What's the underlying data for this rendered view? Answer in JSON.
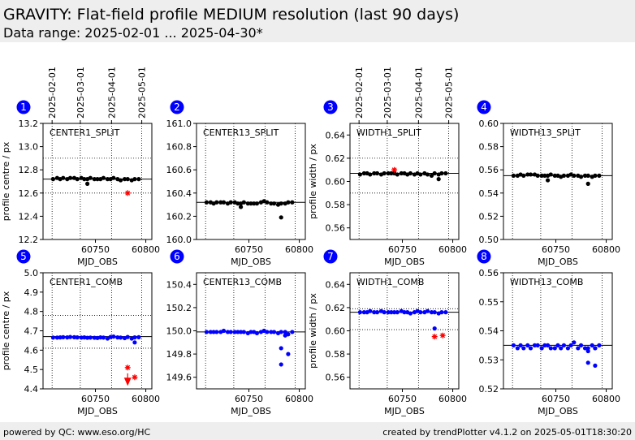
{
  "header": {
    "title": "GRAVITY: Flat-field profile MEDIUM resolution (last 90 days)",
    "subtitle": "Data range: 2025-02-01 ... 2025-04-30*"
  },
  "footer": {
    "left": "powered by QC: www.eso.org/HC",
    "right": "created by trendPlotter v4.1.2 on 2025-05-01T18:30:20"
  },
  "chart_data": [
    {
      "type": "scatter",
      "badge": "1",
      "label": "CENTER1_SPLIT",
      "ylabel": "profile centre / px",
      "xlabel": "MJD_OBS",
      "xlim": [
        60698,
        60806
      ],
      "xticks": [
        60750,
        60800
      ],
      "x2ticks": [
        {
          "value": 60707,
          "label": "2025-02-01"
        },
        {
          "value": 60735,
          "label": "2025-03-01"
        },
        {
          "value": 60766,
          "label": "2025-04-01"
        },
        {
          "value": 60796,
          "label": "2025-05-01"
        }
      ],
      "vlines": [
        60707,
        60735,
        60766,
        60796
      ],
      "ylim": [
        12.2,
        13.2
      ],
      "yticks": [
        12.2,
        12.4,
        12.6,
        12.8,
        {
          "value": 13,
          "label": "13.0"
        },
        13.2
      ],
      "ref_line": 12.72,
      "limits": [
        12.9,
        12.6
      ],
      "series": [
        {
          "color": "#000000",
          "marker": "dot",
          "x": [
            60708,
            60712,
            60715,
            60718,
            60722,
            60725,
            60729,
            60732,
            60736,
            60739,
            60742,
            60745,
            60749,
            60752,
            60755,
            60758,
            60762,
            60765,
            60768,
            60772,
            60775,
            60779,
            60782,
            60786,
            60789,
            60793
          ],
          "values": [
            12.72,
            12.73,
            12.72,
            12.73,
            12.72,
            12.73,
            12.73,
            12.72,
            12.73,
            12.72,
            12.72,
            12.73,
            12.72,
            12.72,
            12.72,
            12.73,
            12.72,
            12.72,
            12.73,
            12.72,
            12.71,
            12.72,
            12.72,
            12.71,
            12.72,
            12.72
          ]
        },
        {
          "color": "#000000",
          "marker": "dot",
          "x": [
            60742
          ],
          "values": [
            12.68
          ]
        },
        {
          "color": "#ff0000",
          "marker": "star",
          "x": [
            60782
          ],
          "values": [
            12.6
          ]
        }
      ]
    },
    {
      "type": "scatter",
      "badge": "2",
      "label": "CENTER13_SPLIT",
      "xlabel": "MJD_OBS",
      "xlim": [
        60698,
        60806
      ],
      "xticks": [
        60750,
        60800
      ],
      "vlines": [
        60707,
        60735,
        60766,
        60796
      ],
      "ylim": [
        160,
        161
      ],
      "yticks": [
        {
          "value": 160,
          "label": "160.0"
        },
        160.2,
        160.4,
        160.6,
        160.8,
        {
          "value": 161,
          "label": "161.0"
        }
      ],
      "ref_line": 160.32,
      "limits": [],
      "series": [
        {
          "color": "#000000",
          "marker": "dot",
          "x": [
            60708,
            60712,
            60715,
            60718,
            60722,
            60725,
            60729,
            60732,
            60736,
            60739,
            60742,
            60745,
            60749,
            60752,
            60755,
            60758,
            60762,
            60765,
            60768,
            60772,
            60775,
            60779,
            60782,
            60786,
            60789,
            60793
          ],
          "values": [
            160.32,
            160.32,
            160.31,
            160.32,
            160.32,
            160.32,
            160.31,
            160.32,
            160.32,
            160.31,
            160.31,
            160.32,
            160.31,
            160.31,
            160.31,
            160.31,
            160.32,
            160.33,
            160.32,
            160.31,
            160.31,
            160.3,
            160.31,
            160.31,
            160.32,
            160.32
          ]
        },
        {
          "color": "#000000",
          "marker": "dot",
          "x": [
            60742,
            60782
          ],
          "values": [
            160.28,
            160.19
          ]
        }
      ]
    },
    {
      "type": "scatter",
      "badge": "3",
      "label": "WIDTH1_SPLIT",
      "ylabel": "profile width / px",
      "xlabel": "MJD_OBS",
      "xlim": [
        60698,
        60806
      ],
      "xticks": [
        60750,
        60800
      ],
      "x2ticks": [
        {
          "value": 60707,
          "label": "2025-02-01"
        },
        {
          "value": 60735,
          "label": "2025-03-01"
        },
        {
          "value": 60766,
          "label": "2025-04-01"
        },
        {
          "value": 60796,
          "label": "2025-05-01"
        }
      ],
      "vlines": [
        60707,
        60735,
        60766,
        60796
      ],
      "ylim": [
        0.55,
        0.65
      ],
      "yticks": [
        0.56,
        0.58,
        {
          "value": 0.6,
          "label": "0.60"
        },
        0.62,
        0.64
      ],
      "ref_line": 0.607,
      "limits": [
        0.62,
        0.59
      ],
      "series": [
        {
          "color": "#000000",
          "marker": "dot",
          "x": [
            60708,
            60712,
            60715,
            60718,
            60722,
            60725,
            60729,
            60732,
            60736,
            60739,
            60742,
            60745,
            60749,
            60752,
            60755,
            60758,
            60762,
            60765,
            60768,
            60772,
            60775,
            60779,
            60782,
            60786,
            60789,
            60793
          ],
          "values": [
            0.606,
            0.607,
            0.607,
            0.606,
            0.607,
            0.607,
            0.606,
            0.607,
            0.607,
            0.607,
            0.607,
            0.606,
            0.607,
            0.607,
            0.606,
            0.607,
            0.606,
            0.607,
            0.606,
            0.607,
            0.606,
            0.605,
            0.607,
            0.606,
            0.607,
            0.607
          ]
        },
        {
          "color": "#000000",
          "marker": "dot",
          "x": [
            60786
          ],
          "values": [
            0.602
          ]
        },
        {
          "color": "#ff0000",
          "marker": "star",
          "x": [
            60742
          ],
          "values": [
            0.61
          ]
        }
      ]
    },
    {
      "type": "scatter",
      "badge": "4",
      "label": "WIDTH13_SPLIT",
      "xlabel": "MJD_OBS",
      "xlim": [
        60698,
        60806
      ],
      "xticks": [
        60750,
        60800
      ],
      "vlines": [
        60707,
        60735,
        60766,
        60796
      ],
      "ylim": [
        0.5,
        0.6
      ],
      "yticks": [
        {
          "value": 0.5,
          "label": "0.50"
        },
        0.52,
        0.54,
        0.56,
        0.58,
        {
          "value": 0.6,
          "label": "0.60"
        }
      ],
      "ref_line": 0.555,
      "limits": [],
      "series": [
        {
          "color": "#000000",
          "marker": "dot",
          "x": [
            60708,
            60712,
            60715,
            60718,
            60722,
            60725,
            60729,
            60732,
            60736,
            60739,
            60742,
            60745,
            60749,
            60752,
            60755,
            60758,
            60762,
            60765,
            60768,
            60772,
            60775,
            60779,
            60782,
            60786,
            60789,
            60793
          ],
          "values": [
            0.555,
            0.555,
            0.556,
            0.555,
            0.556,
            0.556,
            0.556,
            0.555,
            0.555,
            0.555,
            0.555,
            0.556,
            0.555,
            0.555,
            0.554,
            0.555,
            0.555,
            0.556,
            0.555,
            0.555,
            0.554,
            0.555,
            0.555,
            0.554,
            0.555,
            0.555
          ]
        },
        {
          "color": "#000000",
          "marker": "dot",
          "x": [
            60742,
            60782
          ],
          "values": [
            0.551,
            0.548
          ]
        }
      ]
    },
    {
      "type": "scatter",
      "badge": "5",
      "label": "CENTER1_COMB",
      "ylabel": "profile centre / px",
      "xlabel": "MJD_OBS",
      "xlim": [
        60698,
        60806
      ],
      "xticks": [
        60750,
        60800
      ],
      "vlines": [
        60707,
        60735,
        60766,
        60796
      ],
      "ylim": [
        4.4,
        5.0
      ],
      "yticks": [
        4.4,
        4.5,
        4.6,
        4.7,
        4.8,
        4.9,
        {
          "value": 5,
          "label": "5.0"
        }
      ],
      "ref_line": 4.67,
      "limits": [
        4.78,
        4.61
      ],
      "series": [
        {
          "color": "#0000ff",
          "marker": "dot",
          "x": [
            60708,
            60712,
            60715,
            60718,
            60722,
            60725,
            60729,
            60732,
            60736,
            60739,
            60742,
            60745,
            60749,
            60752,
            60755,
            60758,
            60762,
            60765,
            60768,
            60772,
            60775,
            60779,
            60782,
            60786,
            60789,
            60793
          ],
          "values": [
            4.665,
            4.665,
            4.666,
            4.667,
            4.666,
            4.668,
            4.667,
            4.666,
            4.665,
            4.666,
            4.664,
            4.665,
            4.664,
            4.663,
            4.666,
            4.665,
            4.66,
            4.668,
            4.67,
            4.666,
            4.665,
            4.662,
            4.668,
            4.66,
            4.666,
            4.667
          ]
        },
        {
          "color": "#0000ff",
          "marker": "dot",
          "x": [
            60789
          ],
          "values": [
            4.64
          ]
        },
        {
          "color": "#ff0000",
          "marker": "star",
          "x": [
            60782,
            60789
          ],
          "values": [
            4.51,
            4.46
          ]
        },
        {
          "color": "#ff0000",
          "marker": "arrow",
          "x": [
            60782
          ],
          "values": [
            4.43
          ]
        }
      ]
    },
    {
      "type": "scatter",
      "badge": "6",
      "label": "CENTER13_COMB",
      "xlabel": "MJD_OBS",
      "xlim": [
        60698,
        60806
      ],
      "xticks": [
        60750,
        60800
      ],
      "vlines": [
        60707,
        60735,
        60766,
        60796
      ],
      "ylim": [
        149.5,
        150.5
      ],
      "yticks": [
        149.6,
        149.8,
        {
          "value": 150,
          "label": "150.0"
        },
        150.2,
        150.4
      ],
      "ref_line": 149.99,
      "limits": [],
      "series": [
        {
          "color": "#0000ff",
          "marker": "dot",
          "x": [
            60708,
            60712,
            60715,
            60718,
            60722,
            60725,
            60729,
            60732,
            60736,
            60739,
            60742,
            60745,
            60749,
            60752,
            60755,
            60758,
            60762,
            60765,
            60768,
            60772,
            60775,
            60779,
            60782,
            60786,
            60789,
            60793
          ],
          "values": [
            149.99,
            149.99,
            149.99,
            149.99,
            149.99,
            150.0,
            149.99,
            149.99,
            149.99,
            149.99,
            149.99,
            149.99,
            149.98,
            149.99,
            149.99,
            149.98,
            149.99,
            150.0,
            149.99,
            149.99,
            149.99,
            149.98,
            149.99,
            149.99,
            149.97,
            149.99
          ]
        },
        {
          "color": "#0000ff",
          "marker": "dot",
          "x": [
            60782,
            60782,
            60789,
            60786
          ],
          "values": [
            149.85,
            149.71,
            149.8,
            149.96
          ]
        }
      ]
    },
    {
      "type": "scatter",
      "badge": "7",
      "label": "WIDTH1_COMB",
      "ylabel": "profile width / px",
      "xlabel": "MJD_OBS",
      "xlim": [
        60698,
        60806
      ],
      "xticks": [
        60750,
        60800
      ],
      "vlines": [
        60707,
        60735,
        60766,
        60796
      ],
      "ylim": [
        0.55,
        0.65
      ],
      "yticks": [
        0.56,
        0.58,
        {
          "value": 0.6,
          "label": "0.60"
        },
        0.62,
        0.64
      ],
      "ref_line": 0.616,
      "limits": [
        0.619,
        0.601
      ],
      "series": [
        {
          "color": "#0000ff",
          "marker": "dot",
          "x": [
            60708,
            60712,
            60715,
            60718,
            60722,
            60725,
            60729,
            60732,
            60736,
            60739,
            60742,
            60745,
            60749,
            60752,
            60755,
            60758,
            60762,
            60765,
            60768,
            60772,
            60775,
            60779,
            60782,
            60786,
            60789,
            60793
          ],
          "values": [
            0.616,
            0.616,
            0.616,
            0.617,
            0.616,
            0.616,
            0.617,
            0.616,
            0.616,
            0.616,
            0.616,
            0.616,
            0.617,
            0.616,
            0.616,
            0.615,
            0.616,
            0.617,
            0.616,
            0.616,
            0.617,
            0.616,
            0.616,
            0.615,
            0.616,
            0.616
          ]
        },
        {
          "color": "#0000ff",
          "marker": "dot",
          "x": [
            60782
          ],
          "values": [
            0.602
          ]
        },
        {
          "color": "#ff0000",
          "marker": "star",
          "x": [
            60782,
            60790
          ],
          "values": [
            0.595,
            0.596
          ]
        }
      ]
    },
    {
      "type": "scatter",
      "badge": "8",
      "label": "WIDTH13_COMB",
      "xlabel": "MJD_OBS",
      "xlim": [
        60698,
        60806
      ],
      "xticks": [
        60750,
        60800
      ],
      "vlines": [
        60707,
        60735,
        60766,
        60796
      ],
      "ylim": [
        0.52,
        0.56
      ],
      "yticks": [
        0.52,
        0.53,
        0.54,
        0.55,
        0.56
      ],
      "ref_line": 0.535,
      "limits": [],
      "series": [
        {
          "color": "#0000ff",
          "marker": "dot",
          "x": [
            60708,
            60712,
            60715,
            60718,
            60722,
            60725,
            60729,
            60732,
            60736,
            60739,
            60742,
            60745,
            60749,
            60752,
            60755,
            60758,
            60762,
            60765,
            60768,
            60772,
            60775,
            60779,
            60782,
            60786,
            60789,
            60793
          ],
          "values": [
            0.535,
            0.534,
            0.535,
            0.534,
            0.535,
            0.534,
            0.535,
            0.535,
            0.534,
            0.535,
            0.535,
            0.534,
            0.534,
            0.535,
            0.534,
            0.535,
            0.534,
            0.535,
            0.536,
            0.534,
            0.535,
            0.534,
            0.534,
            0.535,
            0.534,
            0.535
          ]
        },
        {
          "color": "#0000ff",
          "marker": "dot",
          "x": [
            60782,
            60782,
            60789,
            60789
          ],
          "values": [
            0.529,
            0.533,
            0.528,
            0.534
          ]
        }
      ]
    }
  ]
}
